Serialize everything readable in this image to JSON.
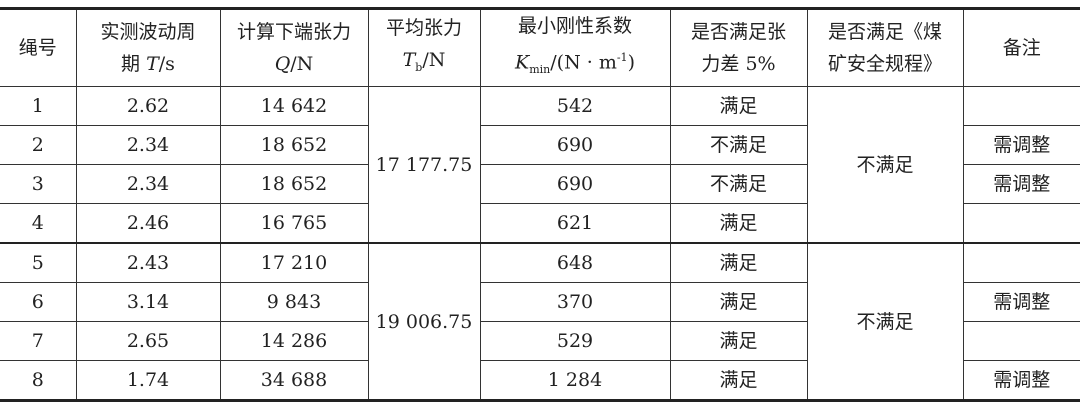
{
  "headers": {
    "id": "绳号",
    "period_l1": "实测波动周",
    "period_l2a": "期 ",
    "period_var": "T",
    "period_unit": "/s",
    "tension_l1": "计算下端张力",
    "tension_var": "Q",
    "tension_unit": "/N",
    "avg_l1": "平均张力",
    "avg_var": "T",
    "avg_sub": "b",
    "avg_unit": "/N",
    "k_l1": "最小刚性系数",
    "k_var": "K",
    "k_sub": "min",
    "k_unit": "/(N · m",
    "k_sup": "-1",
    "k_close": ")",
    "diff_l1": "是否满足张",
    "diff_l2": "力差 5%",
    "reg_l1": "是否满足《煤",
    "reg_l2": "矿安全规程》",
    "remark": "备注"
  },
  "rows": [
    {
      "id": "1",
      "period": "2.62",
      "tension": "14 642",
      "k": "542",
      "diff": "满足",
      "remark": ""
    },
    {
      "id": "2",
      "period": "2.34",
      "tension": "18 652",
      "k": "690",
      "diff": "不满足",
      "remark": "需调整"
    },
    {
      "id": "3",
      "period": "2.34",
      "tension": "18 652",
      "k": "690",
      "diff": "不满足",
      "remark": "需调整"
    },
    {
      "id": "4",
      "period": "2.46",
      "tension": "16 765",
      "k": "621",
      "diff": "满足",
      "remark": ""
    },
    {
      "id": "5",
      "period": "2.43",
      "tension": "17 210",
      "k": "648",
      "diff": "满足",
      "remark": ""
    },
    {
      "id": "6",
      "period": "3.14",
      "tension": "9 843",
      "k": "370",
      "diff": "满足",
      "remark": "需调整"
    },
    {
      "id": "7",
      "period": "2.65",
      "tension": "14 286",
      "k": "529",
      "diff": "满足",
      "remark": ""
    },
    {
      "id": "8",
      "period": "1.74",
      "tension": "34 688",
      "k": "1 284",
      "diff": "满足",
      "remark": "需调整"
    }
  ],
  "groups": [
    {
      "avg": "17 177.75",
      "regulation": "不满足"
    },
    {
      "avg": "19 006.75",
      "regulation": "不满足"
    }
  ]
}
